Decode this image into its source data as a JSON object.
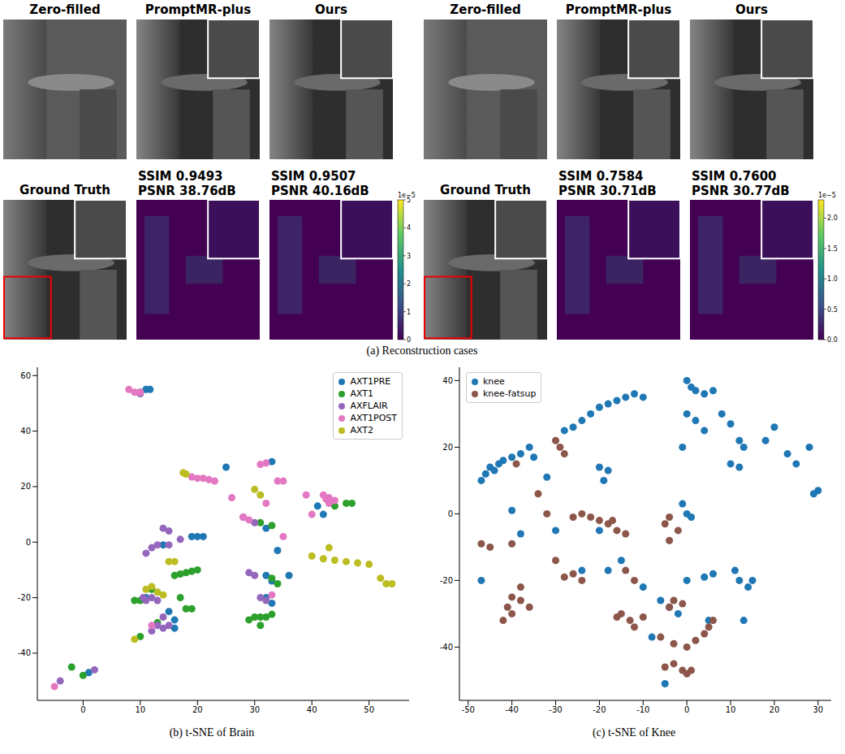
{
  "reconstruction": {
    "caption": "(a) Reconstruction cases",
    "cases": [
      {
        "top_row": [
          "Zero-filled",
          "PromptMR-plus",
          "Ours"
        ],
        "ground_truth": "Ground Truth",
        "errors": [
          {
            "ssim": "SSIM 0.9493",
            "psnr": "PSNR 38.76dB"
          },
          {
            "ssim": "SSIM 0.9507",
            "psnr": "PSNR 40.16dB"
          }
        ],
        "colorbar": {
          "label": "1e−5",
          "range": [
            0,
            5
          ],
          "ticks": [
            0,
            1,
            2,
            3,
            4,
            5
          ]
        }
      },
      {
        "top_row": [
          "Zero-filled",
          "PromptMR-plus",
          "Ours"
        ],
        "ground_truth": "Ground Truth",
        "errors": [
          {
            "ssim": "SSIM 0.7584",
            "psnr": "PSNR 30.71dB"
          },
          {
            "ssim": "SSIM 0.7600",
            "psnr": "PSNR 30.77dB"
          }
        ],
        "colorbar": {
          "label": "1e−5",
          "range": [
            0,
            2.3
          ],
          "ticks": [
            {
              "value": 0,
              "label": "0.0"
            },
            {
              "value": 0.5,
              "label": "0.5"
            },
            {
              "value": 1,
              "label": "1.0"
            },
            {
              "value": 1.5,
              "label": "1.5"
            },
            {
              "value": 2,
              "label": "2.0"
            }
          ]
        }
      }
    ]
  },
  "chart_data": [
    {
      "type": "scatter",
      "caption": "(b) t-SNE of Brain",
      "xlim": [
        -8,
        57
      ],
      "ylim": [
        -57,
        63
      ],
      "xticks": [
        0,
        10,
        20,
        30,
        40,
        50
      ],
      "yticks": [
        -40,
        -20,
        0,
        20,
        40,
        60
      ],
      "legend": "upper right",
      "series": [
        {
          "name": "AXT1PRE",
          "color": "#1f77b4",
          "x": [
            11,
            11.7,
            10,
            25,
            33,
            42,
            41,
            32,
            34,
            14,
            20,
            21,
            11,
            15,
            16,
            16,
            32,
            33,
            32,
            33,
            1,
            19,
            36
          ],
          "y": [
            55,
            55,
            54,
            27,
            29,
            10,
            13,
            5,
            -3,
            -1,
            2,
            2,
            -20,
            -25,
            -28,
            -31,
            -12,
            -14,
            -20,
            -22,
            -47,
            2,
            -12
          ]
        },
        {
          "name": "AXT1",
          "color": "#2ca02c",
          "x": [
            46,
            47,
            31,
            33,
            16,
            17,
            18,
            19,
            20,
            10,
            9,
            17,
            18,
            19,
            10,
            13,
            29,
            30,
            31,
            32,
            33,
            31,
            33,
            34,
            -2,
            0,
            44,
            12
          ],
          "y": [
            14,
            14,
            7,
            6,
            -12,
            -11.5,
            -11,
            -10.5,
            -10,
            -21,
            -21,
            -20,
            -24,
            -24,
            -34,
            -29,
            -28,
            -27,
            -27,
            -27,
            -26,
            -30,
            -13,
            -15,
            -45,
            -48,
            13,
            -17
          ]
        },
        {
          "name": "AXFLAIR",
          "color": "#9467bd",
          "x": [
            10,
            30,
            14,
            15,
            13,
            15,
            12,
            11,
            17,
            12,
            13,
            11,
            13,
            14,
            12,
            15,
            14,
            31,
            32,
            30,
            29,
            2,
            -4,
            28,
            10.5
          ],
          "y": [
            53.5,
            7,
            5,
            4,
            -1,
            -1,
            -2,
            -4,
            1,
            -20,
            -21,
            -21,
            -30,
            -31,
            -32,
            -30,
            -27,
            -20,
            -21,
            -12,
            -11,
            -46,
            -50,
            9,
            -20
          ]
        },
        {
          "name": "AXT1POST",
          "color": "#e377c2",
          "x": [
            8,
            9,
            10,
            19,
            20,
            21,
            22,
            23,
            31,
            32,
            34,
            35,
            26,
            32,
            42,
            43,
            44,
            43,
            42.5,
            39,
            40,
            28,
            29,
            35,
            33,
            -5,
            12
          ],
          "y": [
            55,
            54,
            54,
            23.5,
            23,
            23,
            22.5,
            22,
            28,
            28.5,
            22,
            22,
            16,
            14,
            17,
            16,
            15,
            14,
            15.5,
            17,
            10,
            9,
            8,
            2,
            -19,
            -52,
            -30
          ]
        },
        {
          "name": "AXT2",
          "color": "#bcbd22",
          "x": [
            17.5,
            18,
            30,
            31,
            40,
            42,
            44,
            46,
            48,
            50,
            52,
            53,
            54,
            43,
            16,
            11,
            12,
            13,
            14,
            9,
            15
          ],
          "y": [
            25,
            24.5,
            19,
            17,
            -5,
            -6,
            -6.5,
            -7,
            -7.5,
            -8,
            -13,
            -15,
            -15,
            -2,
            -7,
            -17,
            -16,
            -18,
            -19,
            -35,
            -7
          ]
        }
      ]
    },
    {
      "type": "scatter",
      "caption": "(c) t-SNE of Knee",
      "xlim": [
        -52,
        33
      ],
      "ylim": [
        -56,
        44
      ],
      "xticks": [
        -50,
        -40,
        -30,
        -20,
        -10,
        0,
        10,
        20,
        30
      ],
      "yticks": [
        -40,
        -20,
        0,
        20,
        40
      ],
      "legend": "upper left",
      "series": [
        {
          "name": "knee",
          "color": "#1f77b4",
          "x": [
            -47,
            -46,
            -45,
            -44,
            -43,
            -42,
            -40,
            -38,
            -36,
            -35,
            -28,
            -26,
            -24,
            -22,
            -20,
            -18,
            -16,
            -14,
            -12,
            -10,
            0,
            1,
            2,
            4,
            6,
            0,
            2,
            4,
            -1,
            8,
            10,
            12,
            13,
            18,
            20,
            23,
            25,
            28,
            30,
            29,
            10,
            12,
            11,
            12,
            14,
            15,
            13,
            4,
            6,
            0,
            0,
            1,
            -1,
            -18,
            -20,
            -19,
            -18,
            -20,
            -40,
            -38,
            -24,
            -30,
            -4,
            -6,
            -8,
            -5,
            5,
            -2,
            -10,
            -15,
            -47,
            -32
          ],
          "y": [
            10,
            12,
            14,
            13,
            15,
            16,
            17,
            18,
            20,
            17,
            25,
            26,
            28,
            30,
            32,
            33,
            34,
            35,
            36,
            35,
            40,
            38,
            37,
            36,
            37,
            30,
            28,
            25,
            20,
            30,
            27,
            22,
            20,
            22,
            26,
            18,
            15,
            20,
            7,
            6,
            15,
            14,
            -17,
            -20,
            -22,
            -20,
            -32,
            -19,
            -18,
            -20,
            0,
            -1,
            3,
            -17,
            -5,
            10,
            13,
            14,
            1,
            -6,
            -17,
            -5,
            -28,
            -26,
            -37,
            -51,
            -32,
            -30,
            -22,
            -14,
            -20,
            11
          ]
        },
        {
          "name": "knee-fatsup",
          "color": "#8c564b",
          "x": [
            -30,
            -29,
            -28,
            -26,
            -24,
            -22,
            -20,
            -18,
            -16,
            -14,
            -17,
            -30,
            -28,
            -26,
            -24,
            -40,
            -38,
            -36,
            -40,
            -42,
            -38,
            -40,
            -47,
            -45,
            -32,
            -34,
            -15,
            -13,
            -12,
            -16,
            -10,
            -5,
            -3,
            -1,
            0,
            1,
            -4,
            -5,
            -2,
            -4,
            -3,
            -4,
            -1,
            -6,
            -3,
            0,
            2,
            4,
            5,
            6,
            -39,
            -12,
            -14,
            -41
          ],
          "y": [
            22,
            20,
            18,
            -1,
            0,
            -1,
            -2,
            -3,
            -5,
            -6,
            -2,
            -14,
            -19,
            -18,
            -20,
            -25,
            -26,
            -28,
            -30,
            -32,
            -22,
            -9,
            -9,
            -10,
            0,
            6,
            -30,
            -32,
            -34,
            -31,
            -31,
            -46,
            -45,
            -47,
            -48,
            -47,
            -1,
            -3,
            -5,
            -8,
            -26,
            -28,
            -27,
            -37,
            -39,
            -40,
            -38,
            -36,
            -34,
            -32,
            15,
            -20,
            -17,
            -28
          ]
        }
      ]
    }
  ]
}
